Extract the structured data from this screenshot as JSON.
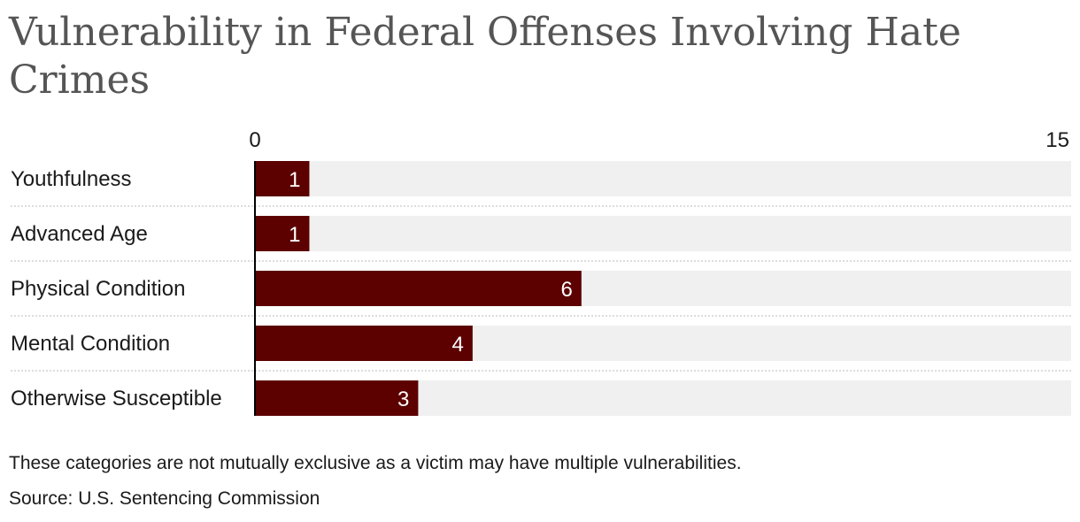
{
  "chart_data": {
    "type": "bar",
    "orientation": "horizontal",
    "title": "Vulnerability in Federal Offenses Involving Hate Crimes",
    "categories": [
      "Youthfulness",
      "Advanced Age",
      "Physical Condition",
      "Mental Condition",
      "Otherwise Susceptible"
    ],
    "values": [
      1,
      1,
      6,
      4,
      3
    ],
    "xlim": [
      0,
      15
    ],
    "axis_ticks": [
      "0",
      "15"
    ],
    "data_labels": [
      "1",
      "1",
      "6",
      "4",
      "3"
    ],
    "note": "These categories are not mutually exclusive as a victim may have multiple vulnerabilities.",
    "source": "Source: U.S. Sentencing Commission",
    "colors": {
      "bar": "#5c0000",
      "track": "#f0f0f0",
      "title": "#555555",
      "divider": "#bbbbbb"
    }
  }
}
